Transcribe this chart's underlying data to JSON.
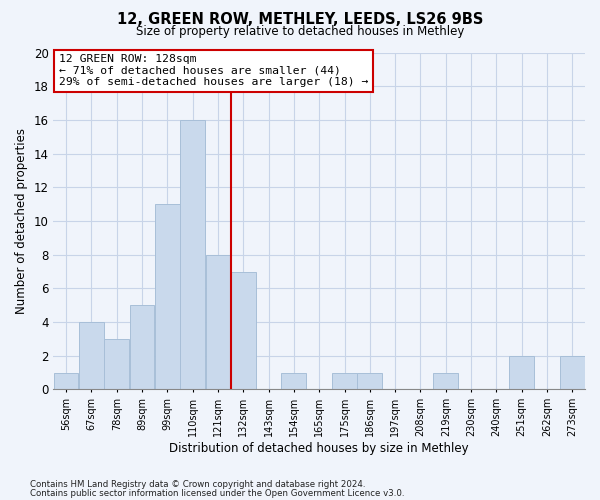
{
  "title": "12, GREEN ROW, METHLEY, LEEDS, LS26 9BS",
  "subtitle": "Size of property relative to detached houses in Methley",
  "xlabel": "Distribution of detached houses by size in Methley",
  "ylabel": "Number of detached properties",
  "bar_color": "#c9d9ec",
  "bar_edgecolor": "#a8bfd8",
  "gridcolor": "#c8d4e8",
  "vline_x": 7,
  "vline_color": "#cc0000",
  "annotation_title": "12 GREEN ROW: 128sqm",
  "annotation_line1": "← 71% of detached houses are smaller (44)",
  "annotation_line2": "29% of semi-detached houses are larger (18) →",
  "annotation_box_color": "#ffffff",
  "annotation_box_edgecolor": "#cc0000",
  "counts": [
    1,
    4,
    3,
    5,
    11,
    16,
    8,
    7,
    0,
    1,
    0,
    1,
    1,
    0,
    0,
    1,
    0,
    0,
    2,
    0,
    2
  ],
  "xtick_labels": [
    "56sqm",
    "67sqm",
    "78sqm",
    "89sqm",
    "99sqm",
    "110sqm",
    "121sqm",
    "132sqm",
    "143sqm",
    "154sqm",
    "165sqm",
    "175sqm",
    "186sqm",
    "197sqm",
    "208sqm",
    "219sqm",
    "230sqm",
    "240sqm",
    "251sqm",
    "262sqm",
    "273sqm"
  ],
  "ylim": [
    0,
    20
  ],
  "yticks": [
    0,
    2,
    4,
    6,
    8,
    10,
    12,
    14,
    16,
    18,
    20
  ],
  "footnote1": "Contains HM Land Registry data © Crown copyright and database right 2024.",
  "footnote2": "Contains public sector information licensed under the Open Government Licence v3.0.",
  "bg_color": "#f0f4fb"
}
